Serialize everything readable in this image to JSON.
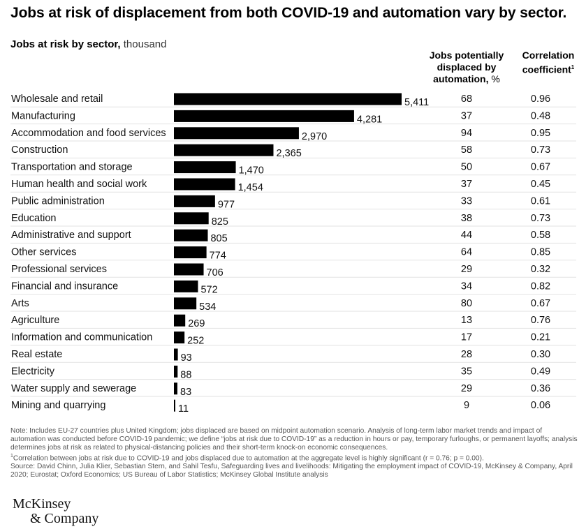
{
  "title": "Jobs at risk of displacement from both COVID-19 and automation vary by sector.",
  "subtitle": {
    "bold": "Jobs at risk by sector,",
    "unit": "thousand"
  },
  "columns": {
    "automation": {
      "line1": "Jobs potentially",
      "line2": "displaced by",
      "line3": "automation,",
      "unit": "%"
    },
    "correlation": {
      "line1": "Correlation",
      "line2": "coefficient",
      "footnote_mark": "1"
    }
  },
  "chart_data": {
    "type": "bar",
    "orientation": "horizontal",
    "title": "Jobs at risk by sector, thousand",
    "categories": [
      "Wholesale and retail",
      "Manufacturing",
      "Accommodation and food services",
      "Construction",
      "Transportation and storage",
      "Human health and social work",
      "Public administration",
      "Education",
      "Administrative and support",
      "Other services",
      "Professional services",
      "Financial and insurance",
      "Arts",
      "Agriculture",
      "Information and communication",
      "Real estate",
      "Electricity",
      "Water supply and sewerage",
      "Mining and quarrying"
    ],
    "values": [
      5411,
      4281,
      2970,
      2365,
      1470,
      1454,
      977,
      825,
      805,
      774,
      706,
      572,
      534,
      269,
      252,
      93,
      88,
      83,
      11
    ],
    "value_labels": [
      "5,411",
      "4,281",
      "2,970",
      "2,365",
      "1,470",
      "1,454",
      "977",
      "825",
      "805",
      "774",
      "706",
      "572",
      "534",
      "269",
      "252",
      "93",
      "88",
      "83",
      "11"
    ],
    "automation_pct": [
      "68",
      "37",
      "94",
      "58",
      "50",
      "37",
      "33",
      "38",
      "44",
      "64",
      "29",
      "34",
      "80",
      "13",
      "17",
      "28",
      "35",
      "29",
      "9"
    ],
    "correlation": [
      "0.96",
      "0.48",
      "0.95",
      "0.73",
      "0.67",
      "0.45",
      "0.61",
      "0.73",
      "0.58",
      "0.85",
      "0.32",
      "0.82",
      "0.67",
      "0.76",
      "0.21",
      "0.30",
      "0.49",
      "0.36",
      "0.06"
    ],
    "xlim": [
      0,
      5411
    ],
    "bar_color": "#000000",
    "grid": false
  },
  "notes": {
    "note": "Note: Includes EU-27 countries plus United Kingdom; jobs displaced are based on midpoint automation scenario. Analysis of long-term labor market trends and impact of automation was conducted before COVID-19 pandemic; we define “jobs at risk due to COVID-19” as a reduction in hours or pay, temporary furloughs, or permanent layoffs; analysis determines jobs at risk as related to physical-distancing policies and their short-term knock-on economic consequences.",
    "footnote_mark": "1",
    "footnote": "Correlation between jobs at risk due to COVID-19 and jobs displaced due to automation at the aggregate level is highly significant (r = 0.76; p = 0.00).",
    "source": "Source: David Chinn, Julia Klier, Sebastian Stern, and Sahil Tesfu, Safeguarding lives and livelihoods: Mitigating the employment impact of COVID-19, McKinsey & Company, April 2020; Eurostat; Oxford Economics; US Bureau of Labor Statistics; McKinsey Global Institute analysis"
  },
  "logo": {
    "line1": "McKinsey",
    "line2": "& Company"
  }
}
